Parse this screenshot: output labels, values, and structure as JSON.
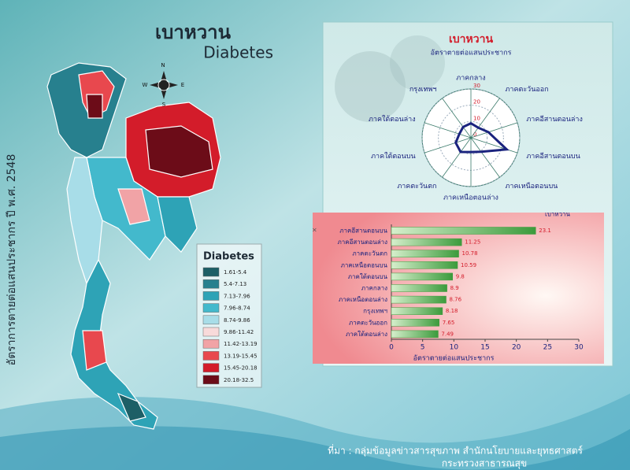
{
  "header": {
    "title_th": "เบาหวาน",
    "title_en": "Diabetes",
    "side_label": "อัตราการตายต่อแสนประชากร ปี พ.ศ. 2548"
  },
  "compass": {
    "n": "N",
    "w": "W",
    "e": "E",
    "s": "S"
  },
  "map_legend": {
    "title": "Diabetes",
    "items": [
      {
        "label": "1.61-5.4",
        "color": "#1d5f66"
      },
      {
        "label": "5.4-7.13",
        "color": "#27808e"
      },
      {
        "label": "7.13-7.96",
        "color": "#2ea3b6"
      },
      {
        "label": "7.96-8.74",
        "color": "#43b9cc"
      },
      {
        "label": "8.74-9.86",
        "color": "#a8dde8"
      },
      {
        "label": "9.86-11.42",
        "color": "#f8dada"
      },
      {
        "label": "11.42-13.19",
        "color": "#f1a3a6"
      },
      {
        "label": "13.19-15.45",
        "color": "#e8484e"
      },
      {
        "label": "15.45-20.18",
        "color": "#d31c2a"
      },
      {
        "label": "20.18-32.5",
        "color": "#6c0c18"
      }
    ]
  },
  "chart_data": [
    {
      "type": "radar",
      "title": "เบาหวาน",
      "subtitle": "อัตราตายต่อแสนประชากร",
      "categories": [
        "ภาคกลาง",
        "ภาคตะวันออก",
        "ภาคอีสานตอนล่าง",
        "ภาคอีสานตอนบน",
        "ภาคเหนือตอนบน",
        "ภาคเหนือตอนล่าง",
        "ภาคตะวันตก",
        "ภาคใต้ตอนบน",
        "ภาคใต้ตอนล่าง",
        "กรุงเทพฯ"
      ],
      "series": [
        {
          "name": "เบาหวาน",
          "color": "#1a237e",
          "values": [
            8.9,
            7.65,
            11.25,
            23.1,
            10.59,
            8.76,
            10.78,
            9.8,
            7.49,
            8.18
          ]
        }
      ],
      "ylim": [
        0,
        30
      ],
      "yticks": [
        0,
        10,
        20,
        30
      ]
    },
    {
      "type": "hbar",
      "xlabel": "อัตราตายต่อแสนประชากร",
      "categories": [
        "ภาคอีสานตอนบน",
        "ภาคอีสานตอนล่าง",
        "ภาคตะวันตก",
        "ภาคเหนือตอนบน",
        "ภาคใต้ตอนบน",
        "ภาคกลาง",
        "ภาคเหนือตอนล่าง",
        "กรุงเทพฯ",
        "ภาคตะวันออก",
        "ภาคใต้ตอนล่าง"
      ],
      "series": [
        {
          "name": "เบาหวาน",
          "color": "#3c9b3c",
          "values": [
            23.1,
            11.25,
            10.78,
            10.59,
            9.8,
            8.9,
            8.76,
            8.18,
            7.65,
            7.49
          ]
        }
      ],
      "xlim": [
        0,
        30
      ],
      "xticks": [
        0,
        5,
        10,
        15,
        20,
        25,
        30
      ]
    }
  ],
  "source": {
    "line1": "ที่มา : กลุ่มข้อมูลข่าวสารสุขภาพ สำนักนโยบายและยุทธศาสตร์",
    "line2": "กระทรวงสาธารณสุข"
  }
}
